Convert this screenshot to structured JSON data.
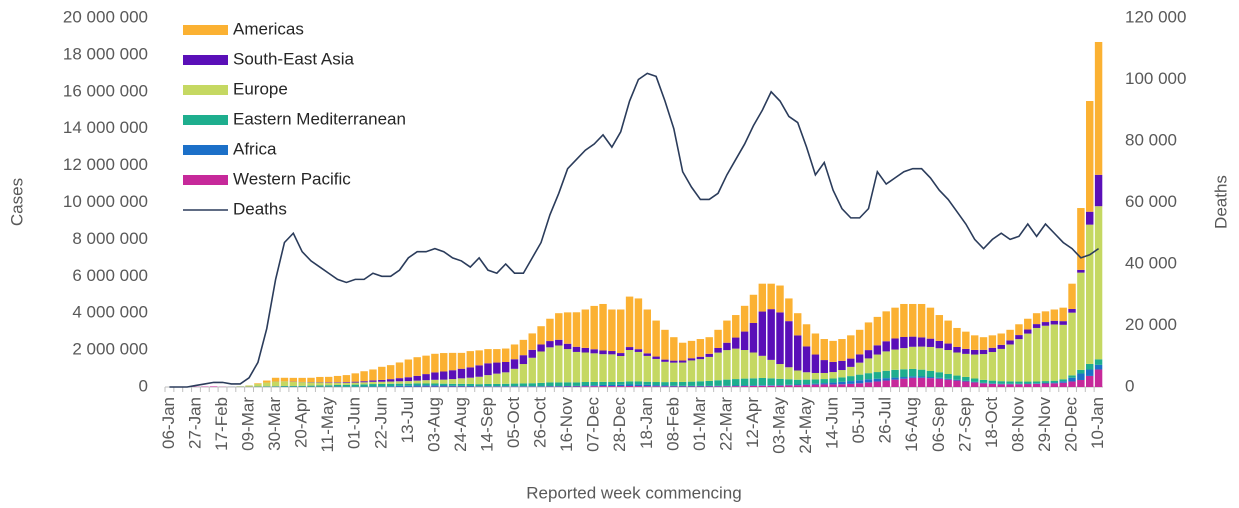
{
  "chart_data": {
    "type": "bar",
    "x_label": "Reported week commencing",
    "y_label": "Cases",
    "y2_label": "Deaths",
    "stacked": true,
    "categories": [
      "06-Jan",
      null,
      null,
      "27-Jan",
      null,
      null,
      "17-Feb",
      null,
      null,
      "09-Mar",
      null,
      null,
      "30-Mar",
      null,
      null,
      "20-Apr",
      null,
      null,
      "11-May",
      null,
      null,
      "01-Jun",
      null,
      null,
      "22-Jun",
      null,
      null,
      "13-Jul",
      null,
      null,
      "03-Aug",
      null,
      null,
      "24-Aug",
      null,
      null,
      "14-Sep",
      null,
      null,
      "05-Oct",
      null,
      null,
      "26-Oct",
      null,
      null,
      "16-Nov",
      null,
      null,
      "07-Dec",
      null,
      null,
      "28-Dec",
      null,
      null,
      "18-Jan",
      null,
      null,
      "08-Feb",
      null,
      null,
      "01-Mar",
      null,
      null,
      "22-Mar",
      null,
      null,
      "12-Apr",
      null,
      null,
      "03-May",
      null,
      null,
      "24-May",
      null,
      null,
      "14-Jun",
      null,
      null,
      "05-Jul",
      null,
      null,
      "26-Jul",
      null,
      null,
      "16-Aug",
      null,
      null,
      "06-Sep",
      null,
      null,
      "27-Sep",
      null,
      null,
      "18-Oct",
      null,
      null,
      "08-Nov",
      null,
      null,
      "29-Nov",
      null,
      null,
      "20-Dec",
      null,
      null,
      "10-Jan"
    ],
    "series": [
      {
        "name": "Americas",
        "color": "#fbb132",
        "values": [
          0,
          0,
          0,
          0,
          0,
          0,
          0,
          0,
          0,
          5000,
          40000,
          110000,
          200000,
          190000,
          200000,
          220000,
          230000,
          280000,
          300000,
          340000,
          380000,
          450000,
          540000,
          590000,
          710000,
          760000,
          850000,
          960000,
          1010000,
          1000000,
          1010000,
          1000000,
          940000,
          860000,
          880000,
          810000,
          770000,
          730000,
          730000,
          800000,
          830000,
          890000,
          990000,
          1210000,
          1440000,
          1700000,
          1870000,
          2080000,
          2350000,
          2520000,
          2250000,
          2360000,
          2735000,
          2750000,
          2375000,
          1950000,
          1615000,
          1270000,
          965000,
          940000,
          960000,
          900000,
          985000,
          1200000,
          1220000,
          1395000,
          1530000,
          1510000,
          1380000,
          1455000,
          1230000,
          1205000,
          1200000,
          1140000,
          1140000,
          1140000,
          1180000,
          1260000,
          1330000,
          1500000,
          1540000,
          1620000,
          1670000,
          1790000,
          1770000,
          1810000,
          1680000,
          1400000,
          1245000,
          1030000,
          935000,
          790000,
          685000,
          675000,
          615000,
          575000,
          585000,
          585000,
          590000,
          580000,
          610000,
          730000,
          1370000,
          3350000,
          6000000,
          7200000
        ]
      },
      {
        "name": "South-East Asia",
        "color": "#5a0fb8",
        "values": [
          0,
          0,
          0,
          0,
          0,
          0,
          0,
          0,
          0,
          0,
          0,
          0,
          5000,
          5000,
          10000,
          10000,
          15000,
          20000,
          25000,
          30000,
          40000,
          50000,
          60000,
          80000,
          100000,
          130000,
          170000,
          210000,
          260000,
          330000,
          400000,
          440000,
          480000,
          520000,
          560000,
          620000,
          640000,
          600000,
          560000,
          520000,
          480000,
          430000,
          380000,
          340000,
          310000,
          290000,
          280000,
          250000,
          220000,
          200000,
          180000,
          160000,
          160000,
          150000,
          140000,
          130000,
          120000,
          110000,
          110000,
          120000,
          130000,
          170000,
          250000,
          400000,
          600000,
          1000000,
          1600000,
          2400000,
          2750000,
          2800000,
          2500000,
          1900000,
          1400000,
          1000000,
          700000,
          550000,
          500000,
          450000,
          450000,
          450000,
          500000,
          550000,
          600000,
          600000,
          550000,
          500000,
          450000,
          400000,
          350000,
          300000,
          270000,
          250000,
          230000,
          230000,
          220000,
          220000,
          220000,
          220000,
          210000,
          200000,
          200000,
          200000,
          200000,
          150000,
          700000,
          1700000
        ]
      },
      {
        "name": "Europe",
        "color": "#c5d862",
        "values": [
          0,
          0,
          0,
          0,
          0,
          0,
          0,
          0,
          20000,
          60000,
          130000,
          200000,
          250000,
          250000,
          230000,
          200000,
          180000,
          160000,
          130000,
          120000,
          110000,
          110000,
          110000,
          120000,
          120000,
          120000,
          130000,
          140000,
          150000,
          180000,
          200000,
          220000,
          260000,
          300000,
          340000,
          400000,
          480000,
          560000,
          620000,
          800000,
          1050000,
          1380000,
          1700000,
          1900000,
          2000000,
          1800000,
          1650000,
          1600000,
          1550000,
          1500000,
          1500000,
          1400000,
          1700000,
          1600000,
          1400000,
          1250000,
          1100000,
          1050000,
          1050000,
          1150000,
          1200000,
          1300000,
          1500000,
          1600000,
          1650000,
          1550000,
          1400000,
          1200000,
          1000000,
          800000,
          650000,
          500000,
          400000,
          350000,
          330000,
          350000,
          400000,
          500000,
          650000,
          800000,
          950000,
          1050000,
          1100000,
          1150000,
          1200000,
          1250000,
          1300000,
          1300000,
          1300000,
          1250000,
          1250000,
          1300000,
          1400000,
          1550000,
          1750000,
          2000000,
          2300000,
          2600000,
          2900000,
          3000000,
          3050000,
          2950000,
          3400000,
          5270000,
          7550000,
          8300000
        ]
      },
      {
        "name": "Eastern Mediterranean",
        "color": "#1eae8e",
        "values": [
          0,
          0,
          0,
          0,
          0,
          0,
          0,
          5000,
          10000,
          10000,
          20000,
          30000,
          30000,
          40000,
          40000,
          50000,
          60000,
          70000,
          80000,
          90000,
          100000,
          110000,
          120000,
          130000,
          130000,
          130000,
          120000,
          110000,
          110000,
          100000,
          100000,
          100000,
          100000,
          110000,
          110000,
          110000,
          120000,
          120000,
          130000,
          140000,
          150000,
          160000,
          180000,
          200000,
          200000,
          200000,
          190000,
          190000,
          180000,
          170000,
          160000,
          160000,
          170000,
          170000,
          170000,
          170000,
          180000,
          200000,
          210000,
          230000,
          250000,
          270000,
          300000,
          330000,
          350000,
          370000,
          380000,
          390000,
          370000,
          340000,
          300000,
          260000,
          240000,
          230000,
          220000,
          220000,
          240000,
          270000,
          300000,
          330000,
          360000,
          400000,
          420000,
          420000,
          400000,
          370000,
          330000,
          300000,
          260000,
          230000,
          210000,
          180000,
          160000,
          150000,
          140000,
          130000,
          120000,
          110000,
          100000,
          100000,
          100000,
          110000,
          130000,
          200000,
          300000,
          300000
        ]
      },
      {
        "name": "Africa",
        "color": "#1c70c8",
        "values": [
          0,
          0,
          0,
          0,
          0,
          0,
          0,
          0,
          0,
          0,
          0,
          0,
          5000,
          5000,
          5000,
          5000,
          5000,
          5000,
          5000,
          10000,
          10000,
          15000,
          20000,
          25000,
          30000,
          40000,
          50000,
          60000,
          70000,
          70000,
          70000,
          60000,
          50000,
          40000,
          40000,
          30000,
          30000,
          30000,
          30000,
          30000,
          30000,
          30000,
          30000,
          30000,
          30000,
          30000,
          30000,
          40000,
          50000,
          60000,
          60000,
          70000,
          80000,
          80000,
          70000,
          60000,
          50000,
          40000,
          35000,
          30000,
          30000,
          30000,
          30000,
          30000,
          35000,
          35000,
          35000,
          35000,
          30000,
          30000,
          30000,
          35000,
          40000,
          50000,
          70000,
          100000,
          130000,
          150000,
          170000,
          170000,
          150000,
          130000,
          110000,
          90000,
          80000,
          70000,
          60000,
          50000,
          45000,
          40000,
          35000,
          30000,
          25000,
          25000,
          25000,
          25000,
          25000,
          25000,
          30000,
          30000,
          40000,
          80000,
          200000,
          350000,
          350000,
          250000
        ]
      },
      {
        "name": "Western Pacific",
        "color": "#c6299a",
        "values": [
          0,
          0,
          5000,
          15000,
          20000,
          30000,
          10000,
          5000,
          10000,
          10000,
          10000,
          10000,
          10000,
          10000,
          10000,
          10000,
          10000,
          10000,
          10000,
          10000,
          5000,
          5000,
          5000,
          5000,
          5000,
          5000,
          10000,
          10000,
          15000,
          20000,
          20000,
          20000,
          20000,
          20000,
          15000,
          15000,
          15000,
          15000,
          15000,
          15000,
          15000,
          15000,
          15000,
          20000,
          20000,
          25000,
          30000,
          40000,
          45000,
          50000,
          50000,
          50000,
          55000,
          50000,
          45000,
          40000,
          35000,
          30000,
          30000,
          30000,
          30000,
          30000,
          35000,
          40000,
          45000,
          50000,
          55000,
          65000,
          70000,
          75000,
          90000,
          100000,
          120000,
          130000,
          140000,
          140000,
          150000,
          170000,
          200000,
          250000,
          300000,
          350000,
          400000,
          450000,
          500000,
          500000,
          480000,
          450000,
          400000,
          350000,
          300000,
          250000,
          200000,
          170000,
          150000,
          150000,
          150000,
          160000,
          170000,
          190000,
          200000,
          230000,
          300000,
          380000,
          600000,
          950000
        ]
      },
      {
        "name": "Deaths",
        "color": "#2b3c5b",
        "type": "line",
        "axis": "y2",
        "values": [
          0,
          0,
          0,
          500,
          1000,
          1500,
          1500,
          1000,
          1000,
          3000,
          8000,
          19000,
          35000,
          47000,
          50000,
          44000,
          41000,
          39000,
          37000,
          35000,
          34000,
          35000,
          35000,
          37000,
          36000,
          36000,
          38000,
          42000,
          44000,
          44000,
          45000,
          44000,
          42000,
          41000,
          39000,
          42000,
          38000,
          37000,
          40000,
          37000,
          37000,
          42000,
          47000,
          56000,
          63000,
          71000,
          74000,
          77000,
          79000,
          82000,
          78000,
          83000,
          93000,
          100000,
          102000,
          101000,
          93000,
          84000,
          70000,
          65000,
          61000,
          61000,
          63000,
          69000,
          74000,
          79000,
          85000,
          90000,
          96000,
          93000,
          88000,
          86000,
          78000,
          69000,
          73000,
          64000,
          58000,
          55000,
          55000,
          58000,
          70000,
          66000,
          68000,
          70000,
          71000,
          71000,
          68000,
          64000,
          61000,
          57000,
          53000,
          48000,
          45000,
          48000,
          50000,
          48000,
          49000,
          53000,
          49000,
          53000,
          50000,
          47000,
          45000,
          42000,
          43000,
          45000
        ]
      }
    ],
    "ylim": [
      0,
      20000000
    ],
    "yticks": [
      0,
      {
        "value": 2000000,
        "label": "2 000 000"
      },
      {
        "value": 4000000,
        "label": "4 000 000"
      },
      {
        "value": 6000000,
        "label": "6 000 000"
      },
      {
        "value": 8000000,
        "label": "8 000 000"
      },
      {
        "value": 10000000,
        "label": "10 000 000"
      },
      {
        "value": 12000000,
        "label": "12 000 000"
      },
      {
        "value": 14000000,
        "label": "14 000 000"
      },
      {
        "value": 16000000,
        "label": "16 000 000"
      },
      {
        "value": 18000000,
        "label": "18 000 000"
      },
      {
        "value": 20000000,
        "label": "20 000 000"
      }
    ],
    "y2lim": [
      0,
      120000
    ],
    "y2ticks": [
      0,
      {
        "value": 20000,
        "label": "20 000"
      },
      {
        "value": 40000,
        "label": "40 000"
      },
      {
        "value": 60000,
        "label": "60 000"
      },
      {
        "value": 80000,
        "label": "80 000"
      },
      {
        "value": 100000,
        "label": "100 000"
      },
      {
        "value": 120000,
        "label": "120 000"
      }
    ],
    "grid": false,
    "legend": "upper left"
  }
}
